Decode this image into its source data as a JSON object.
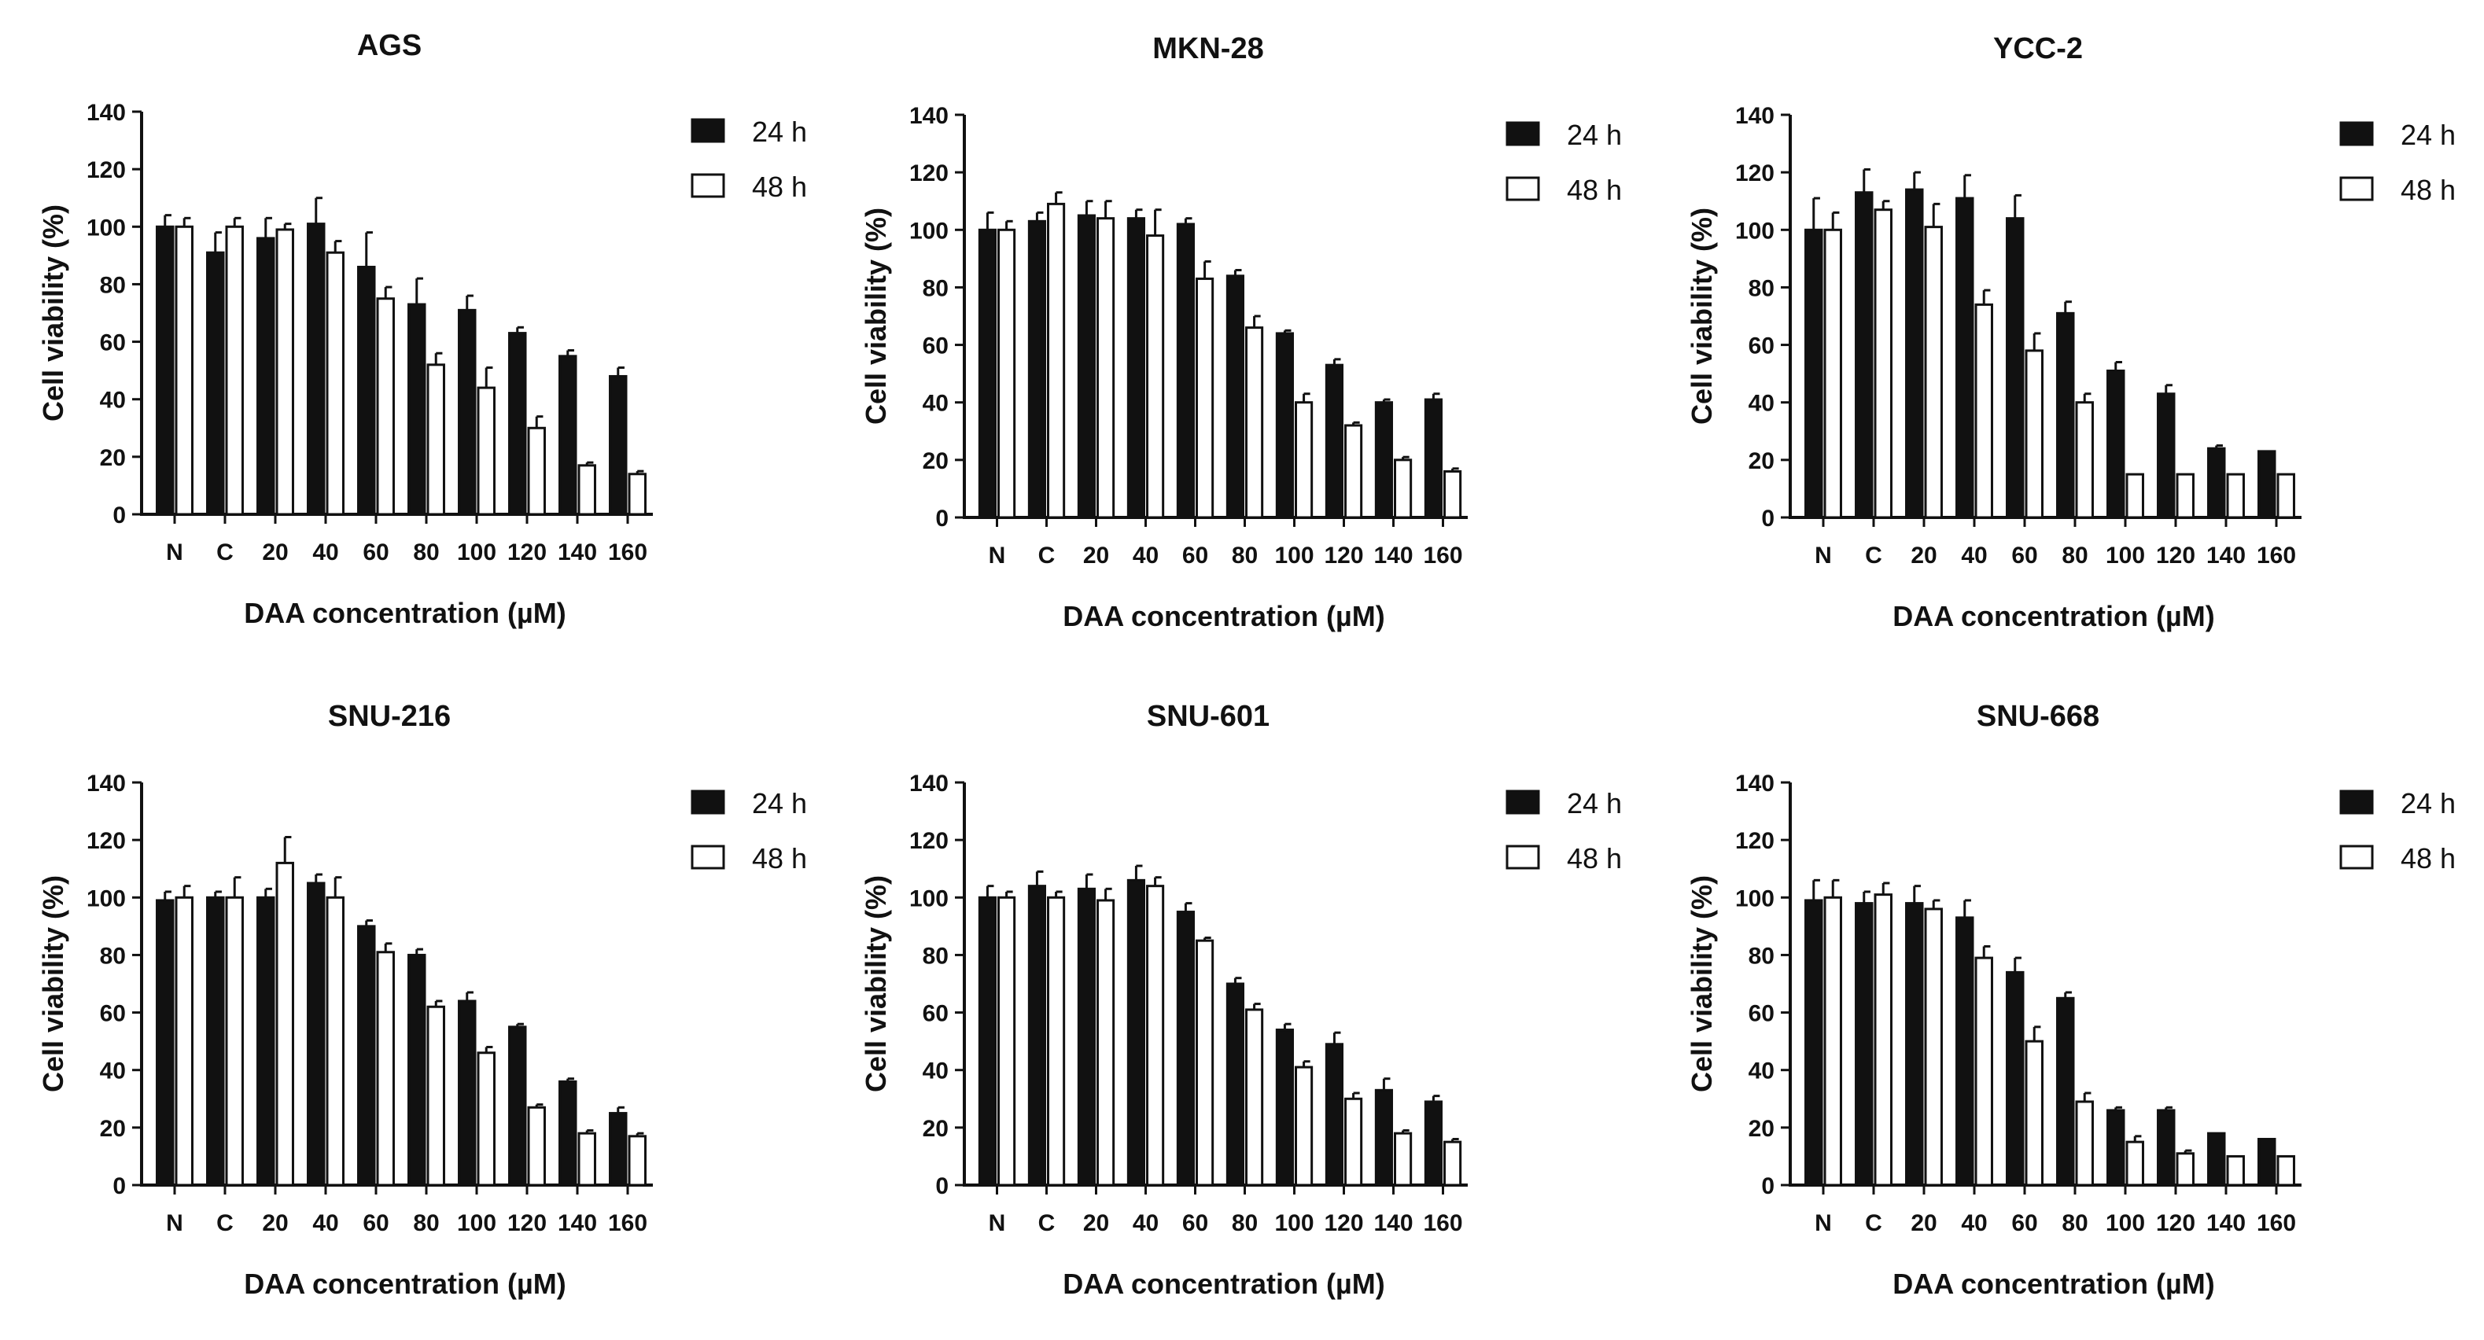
{
  "colors": {
    "h24": "#111111",
    "h48": "#ffffff",
    "axis": "#111111"
  },
  "chart_data": [
    {
      "type": "bar",
      "title": "AGS",
      "xlabel": "DAA concentration (µM)",
      "ylabel": "Cell viability (%)",
      "ylim": [
        0,
        140
      ],
      "yticks": [
        0,
        20,
        40,
        60,
        80,
        100,
        120,
        140
      ],
      "categories": [
        "N",
        "C",
        "20",
        "40",
        "60",
        "80",
        "100",
        "120",
        "140",
        "160"
      ],
      "legend": [
        "24 h",
        "48 h"
      ],
      "series": [
        {
          "name": "24 h",
          "values": [
            100,
            91,
            96,
            101,
            86,
            73,
            71,
            63,
            55,
            48
          ],
          "errors": [
            4,
            7,
            7,
            9,
            12,
            9,
            5,
            2,
            2,
            3
          ]
        },
        {
          "name": "48 h",
          "values": [
            100,
            100,
            99,
            91,
            75,
            52,
            44,
            30,
            17,
            14
          ],
          "errors": [
            3,
            3,
            2,
            4,
            4,
            4,
            7,
            4,
            1,
            1
          ]
        }
      ]
    },
    {
      "type": "bar",
      "title": "MKN-28",
      "xlabel": "DAA concentration (µM)",
      "ylabel": "Cell viability (%)",
      "ylim": [
        0,
        140
      ],
      "yticks": [
        0,
        20,
        40,
        60,
        80,
        100,
        120,
        140
      ],
      "categories": [
        "N",
        "C",
        "20",
        "40",
        "60",
        "80",
        "100",
        "120",
        "140",
        "160"
      ],
      "legend": [
        "24 h",
        "48 h"
      ],
      "series": [
        {
          "name": "24 h",
          "values": [
            100,
            103,
            105,
            104,
            102,
            84,
            64,
            53,
            40,
            41
          ],
          "errors": [
            6,
            3,
            5,
            3,
            2,
            2,
            1,
            2,
            1,
            2
          ]
        },
        {
          "name": "48 h",
          "values": [
            100,
            109,
            104,
            98,
            83,
            66,
            40,
            32,
            20,
            16
          ],
          "errors": [
            3,
            4,
            6,
            9,
            6,
            4,
            3,
            1,
            1,
            1
          ]
        }
      ]
    },
    {
      "type": "bar",
      "title": "YCC-2",
      "xlabel": "DAA concentration (µM)",
      "ylabel": "Cell viability (%)",
      "ylim": [
        0,
        140
      ],
      "yticks": [
        0,
        20,
        40,
        60,
        80,
        100,
        120,
        140
      ],
      "categories": [
        "N",
        "C",
        "20",
        "40",
        "60",
        "80",
        "100",
        "120",
        "140",
        "160"
      ],
      "legend": [
        "24 h",
        "48 h"
      ],
      "series": [
        {
          "name": "24 h",
          "values": [
            100,
            113,
            114,
            111,
            104,
            71,
            51,
            43,
            24,
            23
          ],
          "errors": [
            11,
            8,
            6,
            8,
            8,
            4,
            3,
            3,
            1,
            0
          ]
        },
        {
          "name": "48 h",
          "values": [
            100,
            107,
            101,
            74,
            58,
            40,
            15,
            15,
            15,
            15
          ],
          "errors": [
            6,
            3,
            8,
            5,
            6,
            3,
            0,
            0,
            0,
            0
          ]
        }
      ]
    },
    {
      "type": "bar",
      "title": "SNU-216",
      "xlabel": "DAA concentration (µM)",
      "ylabel": "Cell viability (%)",
      "ylim": [
        0,
        140
      ],
      "yticks": [
        0,
        20,
        40,
        60,
        80,
        100,
        120,
        140
      ],
      "categories": [
        "N",
        "C",
        "20",
        "40",
        "60",
        "80",
        "100",
        "120",
        "140",
        "160"
      ],
      "legend": [
        "24 h",
        "48 h"
      ],
      "series": [
        {
          "name": "24 h",
          "values": [
            99,
            100,
            100,
            105,
            90,
            80,
            64,
            55,
            36,
            25
          ],
          "errors": [
            3,
            2,
            3,
            3,
            2,
            2,
            3,
            1,
            1,
            2
          ]
        },
        {
          "name": "48 h",
          "values": [
            100,
            100,
            112,
            100,
            81,
            62,
            46,
            27,
            18,
            17
          ],
          "errors": [
            4,
            7,
            9,
            7,
            3,
            2,
            2,
            1,
            1,
            1
          ]
        }
      ]
    },
    {
      "type": "bar",
      "title": "SNU-601",
      "xlabel": "DAA concentration (µM)",
      "ylabel": "Cell viability (%)",
      "ylim": [
        0,
        140
      ],
      "yticks": [
        0,
        20,
        40,
        60,
        80,
        100,
        120,
        140
      ],
      "categories": [
        "N",
        "C",
        "20",
        "40",
        "60",
        "80",
        "100",
        "120",
        "140",
        "160"
      ],
      "legend": [
        "24 h",
        "48 h"
      ],
      "series": [
        {
          "name": "24 h",
          "values": [
            100,
            104,
            103,
            106,
            95,
            70,
            54,
            49,
            33,
            29
          ],
          "errors": [
            4,
            5,
            5,
            5,
            3,
            2,
            2,
            4,
            4,
            2
          ]
        },
        {
          "name": "48 h",
          "values": [
            100,
            100,
            99,
            104,
            85,
            61,
            41,
            30,
            18,
            15
          ],
          "errors": [
            2,
            2,
            4,
            3,
            1,
            2,
            2,
            2,
            1,
            1
          ]
        }
      ]
    },
    {
      "type": "bar",
      "title": "SNU-668",
      "xlabel": "DAA concentration (µM)",
      "ylabel": "Cell viability (%)",
      "ylim": [
        0,
        140
      ],
      "yticks": [
        0,
        20,
        40,
        60,
        80,
        100,
        120,
        140
      ],
      "categories": [
        "N",
        "C",
        "20",
        "40",
        "60",
        "80",
        "100",
        "120",
        "140",
        "160"
      ],
      "legend": [
        "24 h",
        "48 h"
      ],
      "series": [
        {
          "name": "24 h",
          "values": [
            99,
            98,
            98,
            93,
            74,
            65,
            26,
            26,
            18,
            16
          ],
          "errors": [
            7,
            4,
            6,
            6,
            5,
            2,
            1,
            1,
            0,
            0
          ]
        },
        {
          "name": "48 h",
          "values": [
            100,
            101,
            96,
            79,
            50,
            29,
            15,
            11,
            10,
            10
          ],
          "errors": [
            6,
            4,
            3,
            4,
            5,
            3,
            2,
            1,
            0,
            0
          ]
        }
      ]
    }
  ]
}
